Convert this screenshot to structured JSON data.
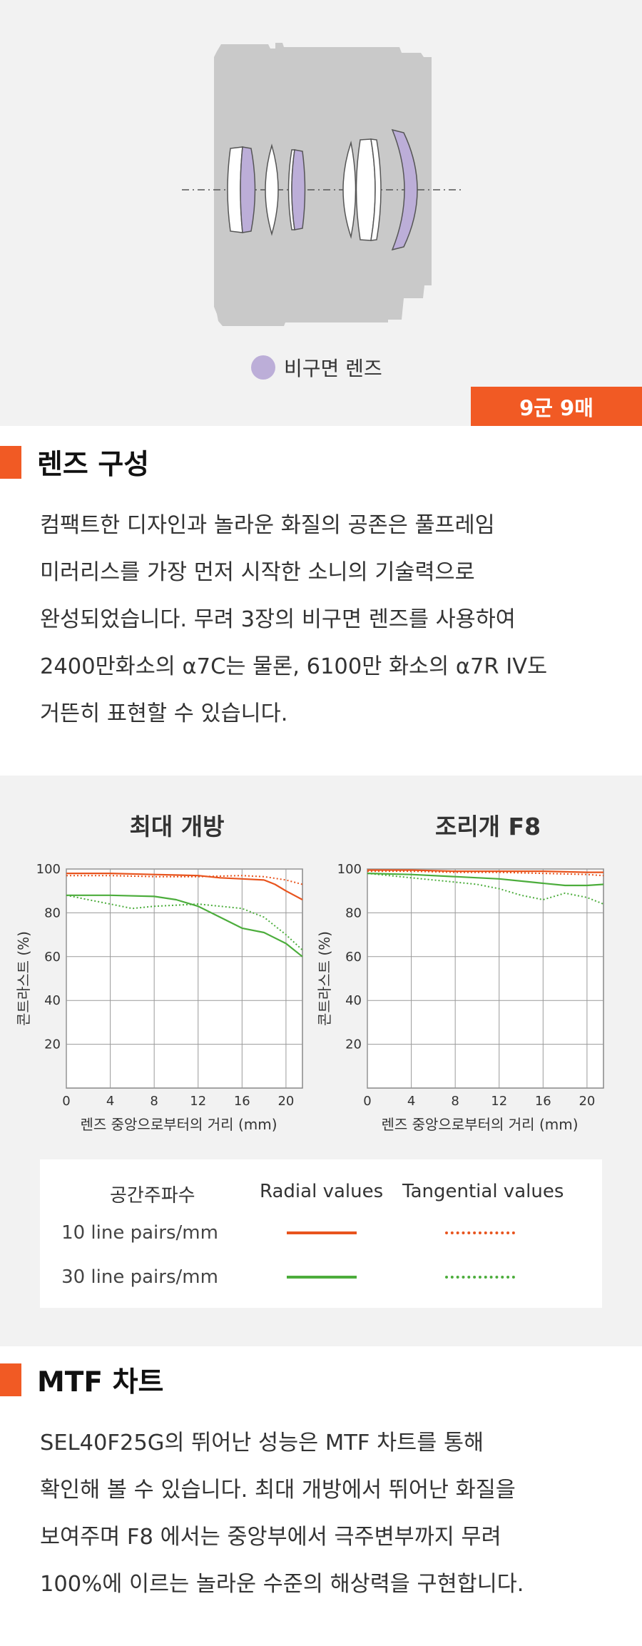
{
  "lens_diagram": {
    "legend_label": "비구면 렌즈",
    "badge": "9군 9매",
    "colors": {
      "body": "#c9c9c9",
      "aspherical": "#bcaed8",
      "lens": "#ffffff",
      "accent": "#f15a24"
    }
  },
  "section1": {
    "title": "렌즈 구성",
    "lines": [
      "컴팩트한 디자인과 놀라운 화질의 공존은 풀프레임",
      "미러리스를 가장 먼저 시작한 소니의 기술력으로",
      "완성되었습니다. 무려 3장의 비구면 렌즈를 사용하여",
      "2400만화소의 α7C는 물론, 6100만 화소의 α7R IV도",
      "거뜬히 표현할 수 있습니다."
    ]
  },
  "mtf": {
    "legend": {
      "col_freq": "공간주파수",
      "col_radial": "Radial values",
      "col_tangential": "Tangential values",
      "rows": [
        {
          "label": "10 line pairs/mm",
          "color": "#e8541e"
        },
        {
          "label": "30 line pairs/mm",
          "color": "#4cad3c"
        }
      ]
    }
  },
  "chart_data": [
    {
      "type": "line",
      "title": "최대 개방",
      "xlabel": "렌즈 중앙으로부터의 거리 (mm)",
      "ylabel": "콘트라스트 (%)",
      "xlim": [
        0,
        21.5
      ],
      "ylim": [
        0,
        100
      ],
      "x_ticks": [
        0,
        4,
        8,
        12,
        16,
        20
      ],
      "y_ticks": [
        20,
        40,
        60,
        80,
        100
      ],
      "grid": true,
      "series": [
        {
          "name": "10 line pairs/mm",
          "kind": "Radial values",
          "color": "#e8541e",
          "style": "solid",
          "x": [
            0,
            4,
            8,
            12,
            14,
            16,
            18,
            19,
            20,
            21.5
          ],
          "y": [
            98,
            98,
            97.5,
            97,
            96,
            95.5,
            95,
            93,
            90,
            86
          ]
        },
        {
          "name": "10 line pairs/mm",
          "kind": "Tangential values",
          "color": "#e8541e",
          "style": "dotted",
          "x": [
            0,
            4,
            8,
            12,
            16,
            18,
            20,
            21.5
          ],
          "y": [
            97,
            97,
            96.5,
            96.5,
            97,
            96.5,
            95,
            93
          ]
        },
        {
          "name": "30 line pairs/mm",
          "kind": "Radial values",
          "color": "#4cad3c",
          "style": "solid",
          "x": [
            0,
            4,
            8,
            10,
            12,
            14,
            16,
            18,
            20,
            21.5
          ],
          "y": [
            88,
            88,
            87.5,
            86,
            83,
            78,
            73,
            71,
            66,
            60
          ]
        },
        {
          "name": "30 line pairs/mm",
          "kind": "Tangential values",
          "color": "#4cad3c",
          "style": "dotted",
          "x": [
            0,
            2,
            4,
            6,
            8,
            12,
            14,
            16,
            18,
            20,
            21.5
          ],
          "y": [
            88,
            86,
            84,
            82,
            83,
            84,
            83,
            82,
            78,
            70,
            63
          ]
        }
      ]
    },
    {
      "type": "line",
      "title": "조리개 F8",
      "xlabel": "렌즈 중앙으로부터의 거리 (mm)",
      "ylabel": "콘트라스트 (%)",
      "xlim": [
        0,
        21.5
      ],
      "ylim": [
        0,
        100
      ],
      "x_ticks": [
        0,
        4,
        8,
        12,
        16,
        20
      ],
      "y_ticks": [
        20,
        40,
        60,
        80,
        100
      ],
      "grid": true,
      "series": [
        {
          "name": "10 line pairs/mm",
          "kind": "Radial values",
          "color": "#e8541e",
          "style": "solid",
          "x": [
            0,
            4,
            8,
            12,
            16,
            20,
            21.5
          ],
          "y": [
            99.5,
            99.5,
            99,
            99,
            99,
            98.5,
            98.5
          ]
        },
        {
          "name": "10 line pairs/mm",
          "kind": "Tangential values",
          "color": "#e8541e",
          "style": "dotted",
          "x": [
            0,
            4,
            8,
            12,
            16,
            20,
            21.5
          ],
          "y": [
            99,
            99,
            98.5,
            98.5,
            98,
            97.5,
            97
          ]
        },
        {
          "name": "30 line pairs/mm",
          "kind": "Radial values",
          "color": "#4cad3c",
          "style": "solid",
          "x": [
            0,
            4,
            8,
            12,
            14,
            16,
            18,
            20,
            21.5
          ],
          "y": [
            98,
            97.5,
            96.5,
            95.5,
            94.5,
            93.5,
            92.5,
            92.5,
            93
          ]
        },
        {
          "name": "30 line pairs/mm",
          "kind": "Tangential values",
          "color": "#4cad3c",
          "style": "dotted",
          "x": [
            0,
            2,
            4,
            8,
            10,
            12,
            14,
            16,
            18,
            20,
            21.5
          ],
          "y": [
            98,
            97,
            96,
            94,
            93,
            91,
            88,
            86,
            89,
            87,
            84
          ]
        }
      ]
    }
  ],
  "section2": {
    "title": "MTF 차트",
    "lines": [
      "SEL40F25G의 뛰어난 성능은 MTF 차트를 통해",
      "확인해 볼 수 있습니다. 최대 개방에서 뛰어난 화질을",
      "보여주며 F8 에서는 중앙부에서 극주변부까지 무려",
      "100%에 이르는 놀라운 수준의 해상력을 구현합니다."
    ]
  }
}
